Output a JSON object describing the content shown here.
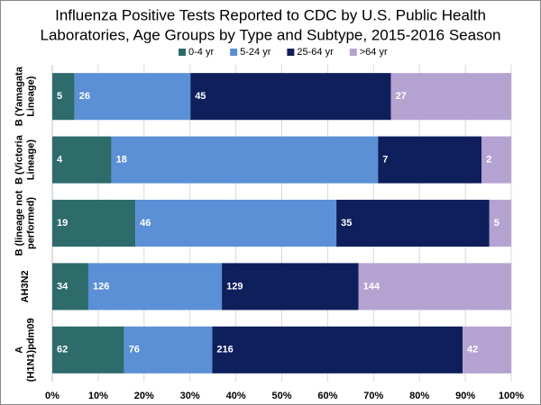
{
  "chart_data": {
    "type": "bar",
    "orientation": "horizontal",
    "stacking": "percent",
    "title": [
      "Influenza Positive Tests Reported to CDC by U.S. Public Health",
      "Laboratories, Age Groups by Type and Subtype, 2015-2016 Season"
    ],
    "categories": [
      [
        "B (Yamagata",
        "Lineage)"
      ],
      [
        "B (Victoria",
        "Lineage)"
      ],
      [
        "B (lineage not",
        "performed)"
      ],
      [
        "AH3N2"
      ],
      [
        "A",
        "(H1N1)pdm09"
      ]
    ],
    "series": [
      {
        "name": "0-4 yr",
        "color": "#2e6b6b",
        "values": [
          5,
          4,
          19,
          34,
          62
        ]
      },
      {
        "name": "5-24 yr",
        "color": "#5b8fd6",
        "values": [
          26,
          18,
          46,
          126,
          76
        ]
      },
      {
        "name": "25-64 yr",
        "color": "#0e1f5c",
        "values": [
          45,
          7,
          35,
          129,
          216
        ]
      },
      {
        "name": ">64 yr",
        "color": "#b4a3d1",
        "values": [
          27,
          2,
          5,
          144,
          42
        ]
      }
    ],
    "xlim": [
      0,
      100
    ],
    "xticks": [
      {
        "value": 0,
        "label": "0%"
      },
      {
        "value": 10,
        "label": "10%"
      },
      {
        "value": 20,
        "label": "20%"
      },
      {
        "value": 30,
        "label": "30%"
      },
      {
        "value": 40,
        "label": "40%"
      },
      {
        "value": 50,
        "label": "50%"
      },
      {
        "value": 60,
        "label": "60%"
      },
      {
        "value": 70,
        "label": "70%"
      },
      {
        "value": 80,
        "label": "80%"
      },
      {
        "value": 90,
        "label": "90%"
      },
      {
        "value": 100,
        "label": "100%"
      }
    ],
    "grid": true,
    "legend": "top"
  }
}
